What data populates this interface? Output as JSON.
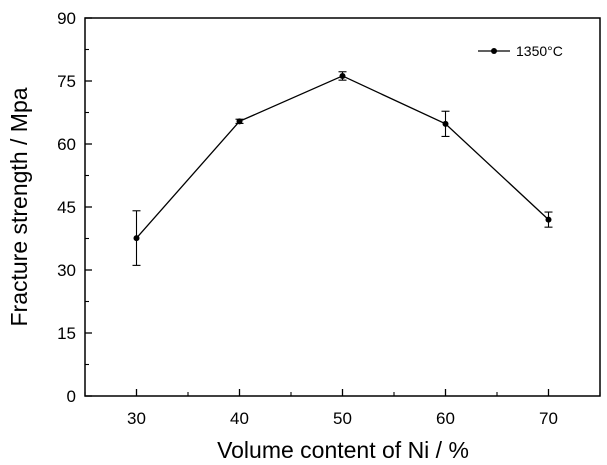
{
  "chart_data": {
    "type": "line",
    "xlabel": "Volume content of Ni / %",
    "ylabel": "Fracture strength / Mpa",
    "xlim": [
      25,
      75
    ],
    "ylim": [
      0,
      90
    ],
    "x_ticks": [
      "30",
      "40",
      "50",
      "60",
      "70"
    ],
    "y_ticks": [
      "0",
      "15",
      "30",
      "45",
      "60",
      "75",
      "90"
    ],
    "legend_position": "top-right",
    "series": [
      {
        "name": "1350°C",
        "color": "#000000",
        "marker": "circle",
        "x": [
          30,
          40,
          50,
          60,
          70
        ],
        "values": [
          37.6,
          65.4,
          76.2,
          64.8,
          42.0
        ],
        "error": [
          6.5,
          0.5,
          1.0,
          3.0,
          1.8
        ]
      }
    ]
  }
}
